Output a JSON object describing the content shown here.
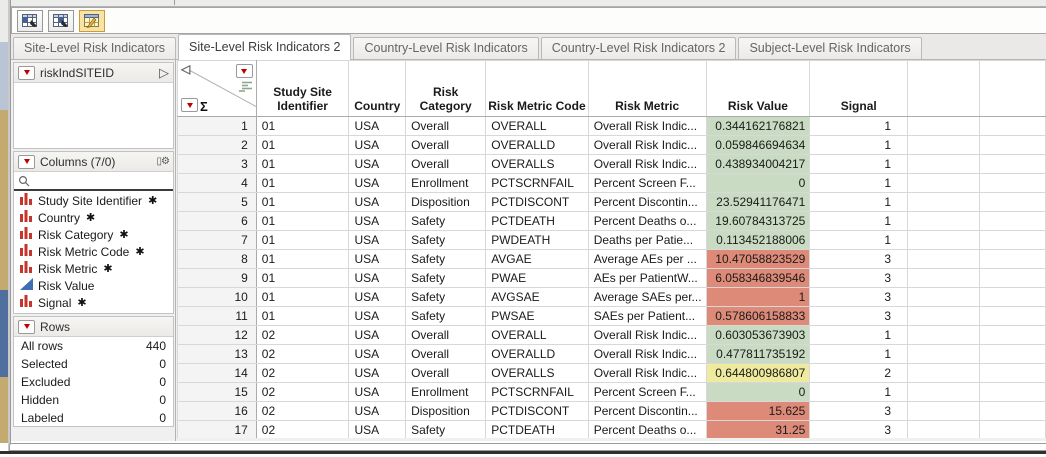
{
  "colors": {
    "signal_green": "#c9dcc3",
    "signal_red": "#dd8a79",
    "signal_yellow": "#eeeb9e",
    "red_triangle": "#c00000",
    "nominal_icon_red": "#c5352b",
    "continuous_icon_blue": "#3f6eb5"
  },
  "icons": {
    "toolbar": [
      "new-data-view-icon",
      "new-data-view-alt-icon",
      "edit-data-table-icon"
    ],
    "search": "magnifier-icon",
    "columns_settings": "column-settings-gear-icon",
    "table_panel_open": "open-panel-arrow-icon",
    "corner": [
      "collapse-panel-icon",
      "columns-menu-icon",
      "column-list-icon",
      "rows-menu-icon",
      "sigma-icon"
    ]
  },
  "tabs": [
    {
      "label": "Site-Level Risk Indicators",
      "active": false
    },
    {
      "label": "Site-Level Risk Indicators 2",
      "active": true
    },
    {
      "label": "Country-Level Risk Indicators",
      "active": false
    },
    {
      "label": "Country-Level Risk Indicators 2",
      "active": false
    },
    {
      "label": "Subject-Level Risk Indicators",
      "active": false
    }
  ],
  "sidebar": {
    "table_panel": {
      "title": "riskIndSITEID"
    },
    "columns_panel": {
      "title": "Columns (7/0)",
      "items": [
        {
          "label": "Study Site Identifier",
          "icon": "bars-red",
          "starred": true
        },
        {
          "label": "Country",
          "icon": "bars-red",
          "starred": true
        },
        {
          "label": "Risk Category",
          "icon": "bars-red",
          "starred": true
        },
        {
          "label": "Risk Metric Code",
          "icon": "bars-red",
          "starred": true
        },
        {
          "label": "Risk Metric",
          "icon": "bars-red",
          "starred": true
        },
        {
          "label": "Risk Value",
          "icon": "triangle-blue",
          "starred": false
        },
        {
          "label": "Signal",
          "icon": "bars-red",
          "starred": true
        }
      ]
    },
    "rows_panel": {
      "title": "Rows",
      "stats": [
        {
          "label": "All rows",
          "value": "440"
        },
        {
          "label": "Selected",
          "value": "0"
        },
        {
          "label": "Excluded",
          "value": "0"
        },
        {
          "label": "Hidden",
          "value": "0"
        },
        {
          "label": "Labeled",
          "value": "0"
        }
      ]
    }
  },
  "table": {
    "headers": [
      "Study Site Identifier",
      "Country",
      "Risk Category",
      "Risk Metric Code",
      "Risk Metric",
      "Risk Value",
      "Signal"
    ],
    "rows": [
      {
        "n": "1",
        "site": "01",
        "country": "USA",
        "category": "Overall",
        "code": "OVERALL",
        "metric": "Overall Risk Indic...",
        "value": "0.344162176821",
        "value_color": "green",
        "signal": "1"
      },
      {
        "n": "2",
        "site": "01",
        "country": "USA",
        "category": "Overall",
        "code": "OVERALLD",
        "metric": "Overall Risk Indic...",
        "value": "0.059846694634",
        "value_color": "green",
        "signal": "1"
      },
      {
        "n": "3",
        "site": "01",
        "country": "USA",
        "category": "Overall",
        "code": "OVERALLS",
        "metric": "Overall Risk Indic...",
        "value": "0.438934004217",
        "value_color": "green",
        "signal": "1"
      },
      {
        "n": "4",
        "site": "01",
        "country": "USA",
        "category": "Enrollment",
        "code": "PCTSCRNFAIL",
        "metric": "Percent Screen F...",
        "value": "0",
        "value_color": "green",
        "signal": "1"
      },
      {
        "n": "5",
        "site": "01",
        "country": "USA",
        "category": "Disposition",
        "code": "PCTDISCONT",
        "metric": "Percent Discontin...",
        "value": "23.52941176471",
        "value_color": "green",
        "signal": "1"
      },
      {
        "n": "6",
        "site": "01",
        "country": "USA",
        "category": "Safety",
        "code": "PCTDEATH",
        "metric": "Percent Deaths o...",
        "value": "19.60784313725",
        "value_color": "green",
        "signal": "1"
      },
      {
        "n": "7",
        "site": "01",
        "country": "USA",
        "category": "Safety",
        "code": "PWDEATH",
        "metric": "Deaths per Patie...",
        "value": "0.113452188006",
        "value_color": "green",
        "signal": "1"
      },
      {
        "n": "8",
        "site": "01",
        "country": "USA",
        "category": "Safety",
        "code": "AVGAE",
        "metric": "Average AEs per ...",
        "value": "10.47058823529",
        "value_color": "red",
        "signal": "3"
      },
      {
        "n": "9",
        "site": "01",
        "country": "USA",
        "category": "Safety",
        "code": "PWAE",
        "metric": "AEs per PatientW...",
        "value": "6.058346839546",
        "value_color": "red",
        "signal": "3"
      },
      {
        "n": "10",
        "site": "01",
        "country": "USA",
        "category": "Safety",
        "code": "AVGSAE",
        "metric": "Average SAEs per...",
        "value": "1",
        "value_color": "red",
        "signal": "3"
      },
      {
        "n": "11",
        "site": "01",
        "country": "USA",
        "category": "Safety",
        "code": "PWSAE",
        "metric": "SAEs per Patient...",
        "value": "0.578606158833",
        "value_color": "red",
        "signal": "3"
      },
      {
        "n": "12",
        "site": "02",
        "country": "USA",
        "category": "Overall",
        "code": "OVERALL",
        "metric": "Overall Risk Indic...",
        "value": "0.603053673903",
        "value_color": "green",
        "signal": "1"
      },
      {
        "n": "13",
        "site": "02",
        "country": "USA",
        "category": "Overall",
        "code": "OVERALLD",
        "metric": "Overall Risk Indic...",
        "value": "0.477811735192",
        "value_color": "green",
        "signal": "1"
      },
      {
        "n": "14",
        "site": "02",
        "country": "USA",
        "category": "Overall",
        "code": "OVERALLS",
        "metric": "Overall Risk Indic...",
        "value": "0.644800986807",
        "value_color": "yellow",
        "signal": "2"
      },
      {
        "n": "15",
        "site": "02",
        "country": "USA",
        "category": "Enrollment",
        "code": "PCTSCRNFAIL",
        "metric": "Percent Screen F...",
        "value": "0",
        "value_color": "green",
        "signal": "1"
      },
      {
        "n": "16",
        "site": "02",
        "country": "USA",
        "category": "Disposition",
        "code": "PCTDISCONT",
        "metric": "Percent Discontin...",
        "value": "15.625",
        "value_color": "red",
        "signal": "3"
      },
      {
        "n": "17",
        "site": "02",
        "country": "USA",
        "category": "Safety",
        "code": "PCTDEATH",
        "metric": "Percent Deaths o...",
        "value": "31.25",
        "value_color": "red",
        "signal": "3"
      }
    ]
  }
}
